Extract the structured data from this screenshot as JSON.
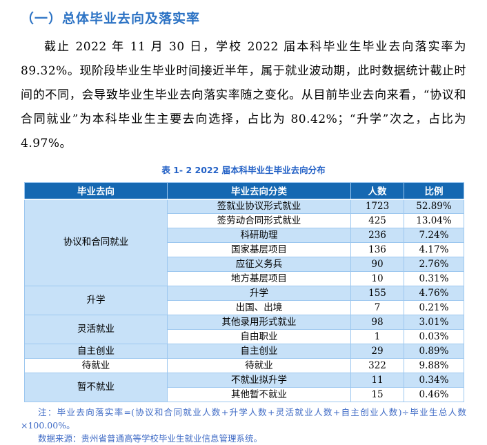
{
  "page": {
    "heading": "（一）总体毕业去向及落实率",
    "paragraph": "截止 2022 年 11 月 30 日，学校 2022 届本科毕业生毕业去向落实率为 89.32%。现阶段毕业生毕业时间接近半年，属于就业波动期，此时数据统计截止时间的不同，会导致毕业生毕业去向落实率随之变化。从目前毕业去向来看，“协议和合同就业”为本科毕业生主要去向选择，占比为 80.42%；“升学”次之，占比为 4.97%。",
    "table_caption": "表 1- 2  2022 届本科毕业生毕业去向分布",
    "notes": [
      "注：毕业去向落实率=(协议和合同就业人数+升学人数+灵活就业人数+自主创业人数)÷毕业生总人数×100.00%。",
      "数据来源：贵州省普通高等学校毕业生就业信息管理系统。"
    ]
  },
  "table": {
    "headers": [
      "毕业去向",
      "毕业去向分类",
      "人数",
      "比例"
    ],
    "groups": [
      {
        "category": "协议和合同就业",
        "category_shaded": true,
        "rows": [
          {
            "subcategory": "签就业协议形式就业",
            "count": "1723",
            "percent": "52.89%"
          },
          {
            "subcategory": "签劳动合同形式就业",
            "count": "425",
            "percent": "13.04%"
          },
          {
            "subcategory": "科研助理",
            "count": "236",
            "percent": "7.24%"
          },
          {
            "subcategory": "国家基层项目",
            "count": "136",
            "percent": "4.17%"
          },
          {
            "subcategory": "应征义务兵",
            "count": "90",
            "percent": "2.76%"
          },
          {
            "subcategory": "地方基层项目",
            "count": "10",
            "percent": "0.31%"
          }
        ]
      },
      {
        "category": "升学",
        "category_shaded": true,
        "rows": [
          {
            "subcategory": "升学",
            "count": "155",
            "percent": "4.76%"
          },
          {
            "subcategory": "出国、出境",
            "count": "7",
            "percent": "0.21%"
          }
        ]
      },
      {
        "category": "灵活就业",
        "category_shaded": true,
        "rows": [
          {
            "subcategory": "其他录用形式就业",
            "count": "98",
            "percent": "3.01%"
          },
          {
            "subcategory": "自由职业",
            "count": "1",
            "percent": "0.03%"
          }
        ]
      },
      {
        "category": "自主创业",
        "category_shaded": true,
        "rows": [
          {
            "subcategory": "自主创业",
            "count": "29",
            "percent": "0.89%"
          }
        ]
      },
      {
        "category": "待就业",
        "category_shaded": false,
        "rows": [
          {
            "subcategory": "待就业",
            "count": "322",
            "percent": "9.88%"
          }
        ]
      },
      {
        "category": "暂不就业",
        "category_shaded": true,
        "rows": [
          {
            "subcategory": "不就业拟升学",
            "count": "11",
            "percent": "0.34%"
          },
          {
            "subcategory": "其他暂不就业",
            "count": "15",
            "percent": "0.46%"
          }
        ]
      }
    ]
  },
  "colors": {
    "heading_blue": "#2b72c4",
    "caption_blue": "#2361c6",
    "note_blue": "#3e6ac5",
    "header_bg": "#1568b2",
    "row_blue": "#c7e1f8",
    "border_blue": "#9cc7ef",
    "outer_border": "#7fb0df"
  }
}
